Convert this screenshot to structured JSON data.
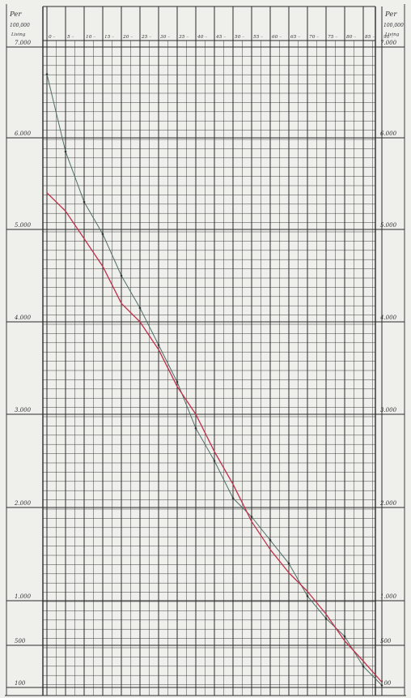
{
  "chart_data": {
    "type": "line",
    "left_header": [
      "Per",
      "100,000",
      "Living"
    ],
    "right_header": [
      "Per",
      "100,000",
      "Living"
    ],
    "x_ticks": [
      "0",
      "5",
      "10",
      "15",
      "20",
      "25",
      "30",
      "35",
      "40",
      "45",
      "50",
      "55",
      "60",
      "65",
      "70",
      "75",
      "80",
      "85",
      "90"
    ],
    "y_ticks": [
      {
        "value": 7000,
        "label": "7.000"
      },
      {
        "value": 6000,
        "label": "6.000"
      },
      {
        "value": 5000,
        "label": "5.000"
      },
      {
        "value": 4000,
        "label": "4.000"
      },
      {
        "value": 3000,
        "label": "3.000"
      },
      {
        "value": 2000,
        "label": "2.000"
      },
      {
        "value": 1000,
        "label": "1.000"
      },
      {
        "value": 500,
        "label": "500"
      },
      {
        "value": 100,
        "label": "100"
      }
    ],
    "grid": true,
    "series": [
      {
        "color": "#4f6f66",
        "points": [
          [
            0,
            6700
          ],
          [
            5,
            5850
          ],
          [
            10,
            5300
          ],
          [
            15,
            4950
          ],
          [
            20,
            4500
          ],
          [
            25,
            4150
          ],
          [
            30,
            3750
          ],
          [
            35,
            3350
          ],
          [
            40,
            2850
          ],
          [
            45,
            2500
          ],
          [
            50,
            2100
          ],
          [
            55,
            1900
          ],
          [
            60,
            1650
          ],
          [
            65,
            1400
          ],
          [
            70,
            1050
          ],
          [
            75,
            800
          ],
          [
            80,
            600
          ],
          [
            85,
            300
          ],
          [
            90,
            120
          ]
        ]
      },
      {
        "color": "#c0304a",
        "points": [
          [
            0,
            5400
          ],
          [
            5,
            5200
          ],
          [
            10,
            4900
          ],
          [
            15,
            4600
          ],
          [
            20,
            4200
          ],
          [
            25,
            4000
          ],
          [
            30,
            3700
          ],
          [
            35,
            3300
          ],
          [
            40,
            3000
          ],
          [
            45,
            2600
          ],
          [
            50,
            2250
          ],
          [
            55,
            1850
          ],
          [
            60,
            1550
          ],
          [
            65,
            1300
          ],
          [
            70,
            1100
          ],
          [
            75,
            850
          ],
          [
            80,
            550
          ],
          [
            85,
            350
          ],
          [
            90,
            150
          ]
        ]
      }
    ],
    "colors": {
      "grid": "#2b2b2b",
      "paper": "#efefec"
    }
  }
}
